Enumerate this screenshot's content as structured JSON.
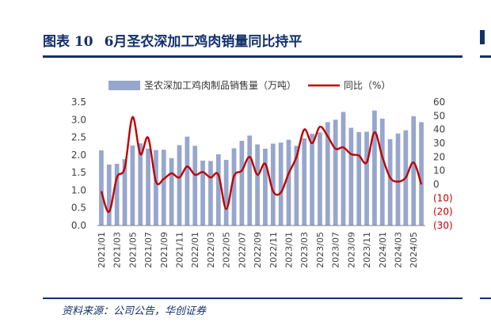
{
  "header": {
    "figure_label": "图表 10",
    "title": "6月圣农深加工鸡肉销量同比持平"
  },
  "footer": {
    "source": "资料来源：公司公告，华创证券"
  },
  "colors": {
    "bar": "#97a6cd",
    "line": "#c00000",
    "negative_tick": "#c00000",
    "title": "#13306b",
    "axis_text": "#404040"
  },
  "chart_data": {
    "type": "bar+line",
    "categories": [
      "2021/01",
      "2021/02",
      "2021/03",
      "2021/04",
      "2021/05",
      "2021/06",
      "2021/07",
      "2021/08",
      "2021/09",
      "2021/10",
      "2021/11",
      "2021/12",
      "2022/01",
      "2022/02",
      "2022/03",
      "2022/04",
      "2022/05",
      "2022/06",
      "2022/07",
      "2022/08",
      "2022/09",
      "2022/10",
      "2022/11",
      "2022/12",
      "2023/01",
      "2023/02",
      "2023/03",
      "2023/04",
      "2023/05",
      "2023/06",
      "2023/07",
      "2023/08",
      "2023/09",
      "2023/10",
      "2023/11",
      "2023/12",
      "2024/01",
      "2024/02",
      "2024/03",
      "2024/04",
      "2024/05",
      "2024/06"
    ],
    "x_tick_labels": [
      "2021/01",
      "2021/03",
      "2021/05",
      "2021/07",
      "2021/09",
      "2021/11",
      "2022/01",
      "2022/03",
      "2022/05",
      "2022/07",
      "2022/09",
      "2022/11",
      "2023/01",
      "2023/03",
      "2023/05",
      "2023/07",
      "2023/09",
      "2023/11",
      "2024/01",
      "2024/03",
      "2024/05"
    ],
    "series": [
      {
        "name": "圣农深加工鸡肉制品销售量（万吨）",
        "type": "bar",
        "axis": "left",
        "values": [
          2.13,
          1.73,
          1.75,
          1.88,
          2.27,
          2.33,
          2.18,
          2.14,
          2.15,
          1.91,
          2.28,
          2.52,
          2.26,
          1.84,
          1.83,
          2.02,
          1.86,
          2.19,
          2.4,
          2.55,
          2.3,
          2.18,
          2.32,
          2.35,
          2.43,
          2.26,
          2.47,
          2.6,
          2.64,
          2.93,
          3.0,
          3.22,
          2.77,
          2.65,
          2.66,
          3.26,
          3.03,
          2.45,
          2.61,
          2.7,
          3.1,
          2.93
        ]
      },
      {
        "name": "同比（%）",
        "type": "line",
        "axis": "right",
        "values": [
          -5,
          -20,
          5,
          12,
          49,
          22,
          34,
          2,
          4,
          8,
          5,
          13,
          7,
          9,
          5,
          7,
          -18,
          6,
          10,
          20,
          7,
          15,
          -5,
          -6,
          8,
          20,
          40,
          30,
          42,
          35,
          26,
          27,
          22,
          21,
          16,
          38,
          20,
          5,
          2,
          5,
          16,
          0
        ]
      }
    ],
    "left_axis": {
      "min": 0,
      "max": 3.5,
      "ticks": [
        "0.0",
        "0.5",
        "1.0",
        "1.5",
        "2.0",
        "2.5",
        "3.0",
        "3.5"
      ]
    },
    "right_axis": {
      "min": -30,
      "max": 60,
      "ticks": [
        "(30)",
        "(20)",
        "(10)",
        "0",
        "10",
        "20",
        "30",
        "40",
        "50",
        "60"
      ]
    },
    "legend": {
      "position": "top"
    },
    "grid": false
  }
}
